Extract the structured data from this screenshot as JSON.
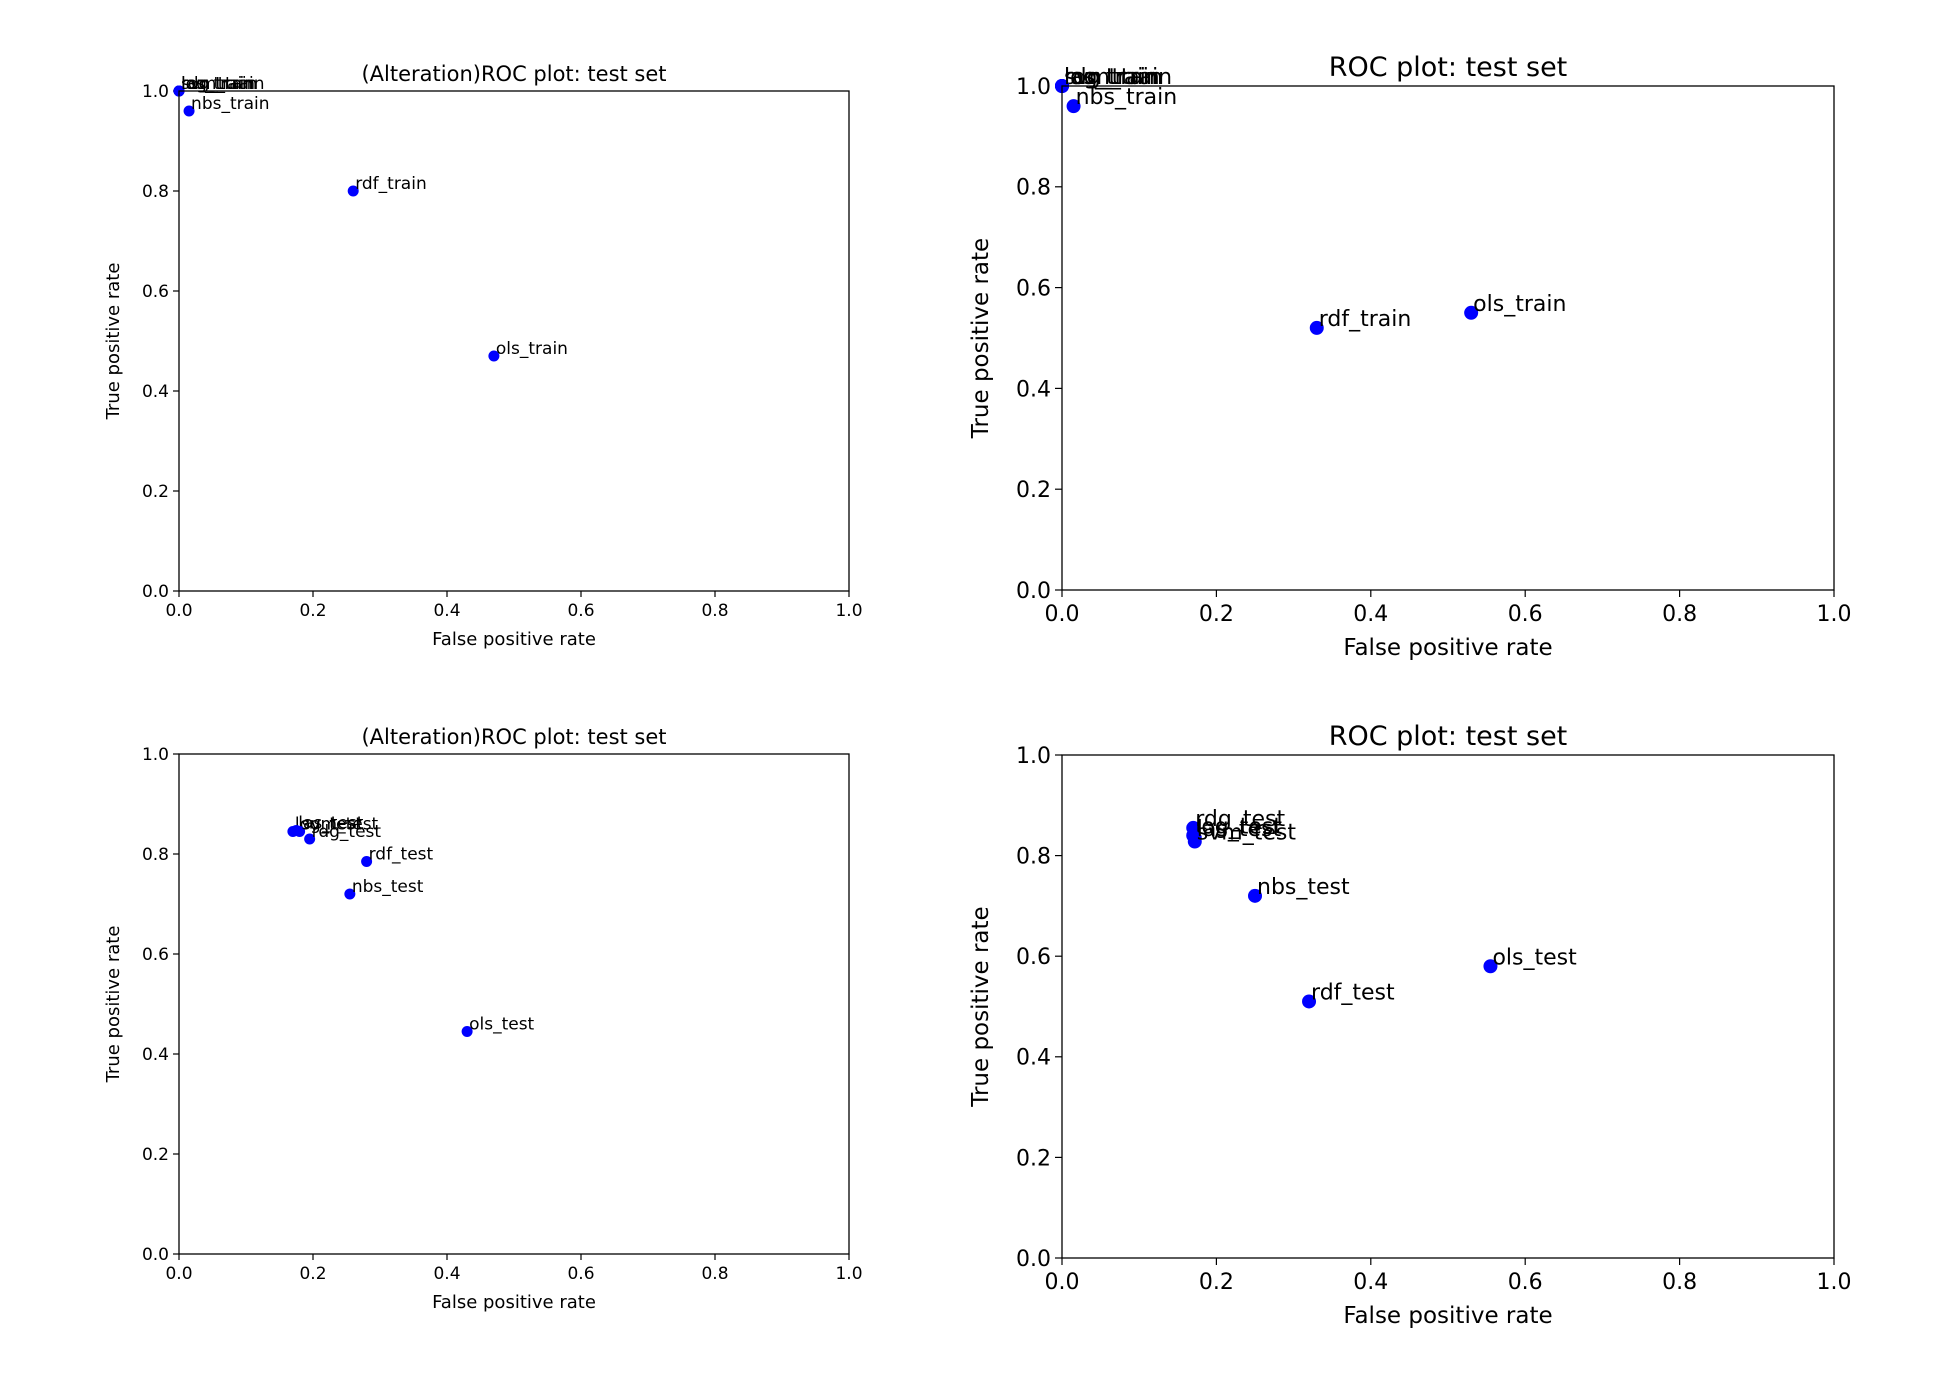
{
  "chart_data": [
    {
      "type": "scatter",
      "title": "(Alteration)ROC plot: test set",
      "xlabel": "False positive rate",
      "ylabel": "True positive rate",
      "xlim": [
        0,
        1
      ],
      "ylim": [
        0,
        1
      ],
      "xticks": [
        "0.0",
        "0.2",
        "0.4",
        "0.6",
        "0.8",
        "1.0"
      ],
      "yticks": [
        "0.0",
        "0.2",
        "0.4",
        "0.6",
        "0.8",
        "1.0"
      ],
      "point_color": "#0000ff",
      "points": [
        {
          "label": "ols_train",
          "x": 0.47,
          "y": 0.47
        },
        {
          "label": "rdf_train",
          "x": 0.26,
          "y": 0.8
        },
        {
          "label": "nbs_train",
          "x": 0.015,
          "y": 0.96
        },
        {
          "label": "las_train",
          "x": 0.0,
          "y": 1.0
        },
        {
          "label": "svm_train",
          "x": 0.0,
          "y": 1.0
        },
        {
          "label": "rdg_train",
          "x": 0.0,
          "y": 1.0
        },
        {
          "label": "log_train",
          "x": 0.0,
          "y": 1.0
        }
      ]
    },
    {
      "type": "scatter",
      "title": "ROC plot: test set",
      "xlabel": "False positive rate",
      "ylabel": "True positive rate",
      "xlim": [
        0,
        1
      ],
      "ylim": [
        0,
        1
      ],
      "xticks": [
        "0.0",
        "0.2",
        "0.4",
        "0.6",
        "0.8",
        "1.0"
      ],
      "yticks": [
        "0.0",
        "0.2",
        "0.4",
        "0.6",
        "0.8",
        "1.0"
      ],
      "point_color": "#0000ff",
      "points": [
        {
          "label": "ols_train",
          "x": 0.53,
          "y": 0.55
        },
        {
          "label": "rdf_train",
          "x": 0.33,
          "y": 0.52
        },
        {
          "label": "nbs_train",
          "x": 0.015,
          "y": 0.96
        },
        {
          "label": "las_train",
          "x": 0.0,
          "y": 1.0
        },
        {
          "label": "svm_train",
          "x": 0.0,
          "y": 1.0
        },
        {
          "label": "rdg_train",
          "x": 0.0,
          "y": 1.0
        },
        {
          "label": "log_train",
          "x": 0.0,
          "y": 1.0
        }
      ]
    },
    {
      "type": "scatter",
      "title": "(Alteration)ROC plot: test set",
      "xlabel": "False positive rate",
      "ylabel": "True positive rate",
      "xlim": [
        0,
        1
      ],
      "ylim": [
        0,
        1
      ],
      "xticks": [
        "0.0",
        "0.2",
        "0.4",
        "0.6",
        "0.8",
        "1.0"
      ],
      "yticks": [
        "0.0",
        "0.2",
        "0.4",
        "0.6",
        "0.8",
        "1.0"
      ],
      "point_color": "#0000ff",
      "points": [
        {
          "label": "ols_test",
          "x": 0.43,
          "y": 0.445
        },
        {
          "label": "nbs_test",
          "x": 0.255,
          "y": 0.72
        },
        {
          "label": "rdf_test",
          "x": 0.28,
          "y": 0.785
        },
        {
          "label": "rdg_test",
          "x": 0.195,
          "y": 0.83
        },
        {
          "label": "log_test",
          "x": 0.17,
          "y": 0.845
        },
        {
          "label": "las_test",
          "x": 0.175,
          "y": 0.847
        },
        {
          "label": "svm_test",
          "x": 0.18,
          "y": 0.845
        }
      ]
    },
    {
      "type": "scatter",
      "title": "ROC plot: test set",
      "xlabel": "False positive rate",
      "ylabel": "True positive rate",
      "xlim": [
        0,
        1
      ],
      "ylim": [
        0,
        1
      ],
      "xticks": [
        "0.0",
        "0.2",
        "0.4",
        "0.6",
        "0.8",
        "1.0"
      ],
      "yticks": [
        "0.0",
        "0.2",
        "0.4",
        "0.6",
        "0.8",
        "1.0"
      ],
      "point_color": "#0000ff",
      "points": [
        {
          "label": "ols_test",
          "x": 0.555,
          "y": 0.58
        },
        {
          "label": "rdf_test",
          "x": 0.32,
          "y": 0.51
        },
        {
          "label": "nbs_test",
          "x": 0.25,
          "y": 0.72
        },
        {
          "label": "rdg_test",
          "x": 0.17,
          "y": 0.855
        },
        {
          "label": "log_test",
          "x": 0.17,
          "y": 0.84
        },
        {
          "label": "las_test",
          "x": 0.172,
          "y": 0.835
        },
        {
          "label": "svm_test",
          "x": 0.172,
          "y": 0.828
        }
      ]
    }
  ]
}
